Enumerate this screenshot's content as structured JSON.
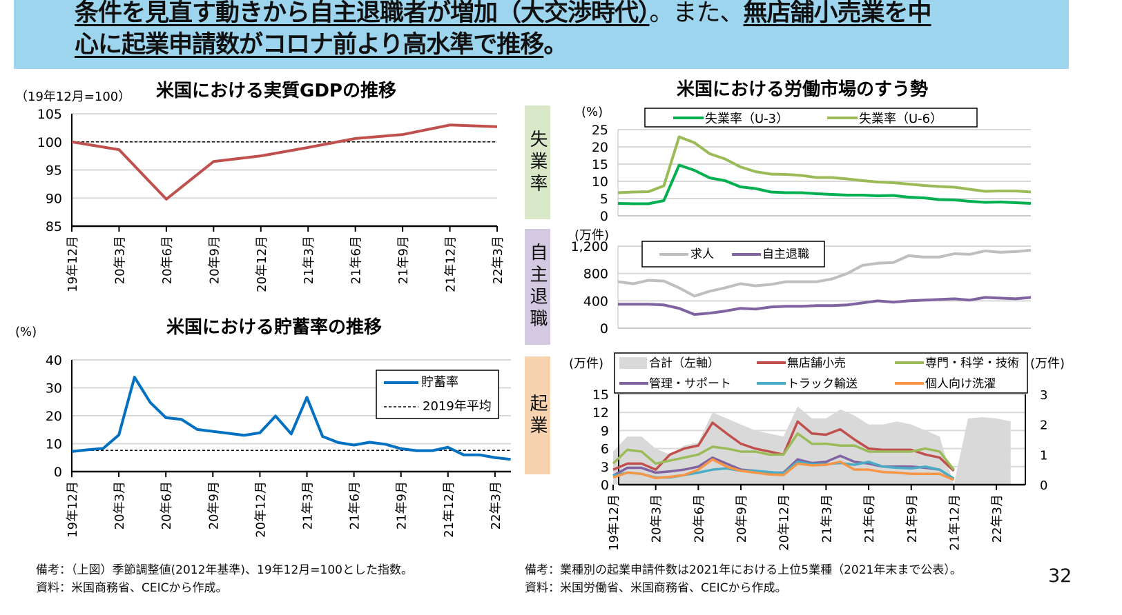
{
  "header": {
    "line1_a": "条件を見直す動きから自主退職者が増加（大交渉時代）",
    "line1_b": "。また、",
    "line1_c": "無店舗小売業を中",
    "line2_a": "心に起業申請数がコロナ前より高水準で推移",
    "line2_b": "。"
  },
  "tabs": {
    "unemployment": "失業率",
    "quits": "自主退職",
    "startups": "起業"
  },
  "notes": {
    "left1": "備考：（上図）季節調整値(2012年基準)、19年12月=100とした指数。",
    "left2": "資料：米国商務省、CEICから作成。",
    "right1": "備考：業種別の起業申請件数は2021年における上位5業種（2021年末まで公表）。",
    "right2": "資料：米国労働省、米国商務省、CEICから作成。"
  },
  "page_number": "32",
  "labor_title": "米国における労働市場のすう勢",
  "chart_data": [
    {
      "id": "gdp",
      "type": "line",
      "title": "米国における実質GDPの推移",
      "unit": "（19年12月=100）",
      "ylim": [
        85,
        105
      ],
      "yticks": [
        "105",
        "100",
        "95",
        "90",
        "85"
      ],
      "xticks": [
        "19年12月",
        "20年3月",
        "20年6月",
        "20年9月",
        "20年12月",
        "21年3月",
        "21年6月",
        "21年9月",
        "21年12月",
        "22年3月"
      ],
      "series": [
        {
          "values": [
            100,
            98.6,
            89.8,
            96.5,
            97.5,
            99.0,
            100.6,
            101.3,
            103.0,
            102.7
          ],
          "color": "#c0504d"
        }
      ],
      "reference": {
        "value": 100,
        "style": "dashed"
      }
    },
    {
      "id": "savings",
      "type": "line",
      "title": "米国における貯蓄率の推移",
      "unit": "(%)",
      "ylim": [
        0,
        40
      ],
      "yticks": [
        "40",
        "30",
        "20",
        "10",
        "0"
      ],
      "xticks": [
        "19年12月",
        "20年3月",
        "20年6月",
        "20年9月",
        "20年12月",
        "21年3月",
        "21年6月",
        "21年9月",
        "21年12月",
        "22年3月"
      ],
      "legend": [
        "貯蓄率",
        "2019年平均"
      ],
      "legend_position": "top-right",
      "series": [
        {
          "name": "貯蓄率",
          "color": "#0070c0",
          "values": [
            7.2,
            7.8,
            8.3,
            13.1,
            33.8,
            24.8,
            19.3,
            18.7,
            15.1,
            14.4,
            13.7,
            13.0,
            13.9,
            19.9,
            13.5,
            26.6,
            12.6,
            10.4,
            9.5,
            10.5,
            9.8,
            8.2,
            7.5,
            7.5,
            8.7,
            6.0,
            6.0,
            5.0,
            4.4
          ]
        }
      ],
      "reference": {
        "name": "2019年平均",
        "value": 7.6,
        "style": "dashed"
      }
    },
    {
      "id": "unemployment",
      "type": "line",
      "unit": "(%)",
      "ylim": [
        0,
        25
      ],
      "yticks": [
        "25",
        "20",
        "15",
        "10",
        "5",
        "0"
      ],
      "legend": [
        "失業率（U-3）",
        "失業率（U-6）"
      ],
      "series": [
        {
          "name": "失業率（U-3）",
          "color": "#00b050",
          "values": [
            3.6,
            3.5,
            3.5,
            4.4,
            14.7,
            13.2,
            11.0,
            10.2,
            8.4,
            7.9,
            6.9,
            6.7,
            6.7,
            6.4,
            6.2,
            6.0,
            6.0,
            5.8,
            5.9,
            5.4,
            5.2,
            4.7,
            4.6,
            4.2,
            3.9,
            4.0,
            3.8,
            3.6
          ]
        },
        {
          "name": "失業率（U-6）",
          "color": "#9bbb59",
          "values": [
            6.7,
            6.9,
            7.0,
            8.7,
            22.9,
            21.2,
            18.0,
            16.5,
            14.2,
            12.8,
            12.1,
            12.0,
            11.7,
            11.1,
            11.1,
            10.7,
            10.2,
            9.8,
            9.6,
            9.2,
            8.8,
            8.5,
            8.3,
            7.7,
            7.1,
            7.2,
            7.2,
            6.9
          ]
        }
      ]
    },
    {
      "id": "quits",
      "type": "line",
      "unit": "(万件)",
      "ylim": [
        0,
        1200
      ],
      "yticks": [
        "1,200",
        "800",
        "400",
        "0"
      ],
      "legend": [
        "求人",
        "自主退職"
      ],
      "series": [
        {
          "name": "求人",
          "color": "#bfbfbf",
          "values": [
            680,
            650,
            700,
            690,
            590,
            470,
            540,
            590,
            650,
            620,
            640,
            680,
            680,
            680,
            720,
            800,
            920,
            950,
            960,
            1060,
            1040,
            1040,
            1090,
            1080,
            1130,
            1110,
            1120,
            1140
          ]
        },
        {
          "name": "自主退職",
          "color": "#8064a2",
          "values": [
            350,
            350,
            350,
            340,
            290,
            200,
            220,
            250,
            290,
            280,
            310,
            320,
            320,
            330,
            330,
            340,
            370,
            400,
            380,
            400,
            410,
            420,
            430,
            410,
            450,
            440,
            430,
            450
          ]
        }
      ]
    },
    {
      "id": "startups",
      "type": "area+line",
      "unit_left": "(万件)",
      "unit_right": "(万件)",
      "ylim_left": [
        0,
        15
      ],
      "yticks_left": [
        "15",
        "12",
        "9",
        "6",
        "3",
        "0"
      ],
      "ylim_right": [
        0,
        3
      ],
      "yticks_right": [
        "3",
        "2",
        "1",
        "0"
      ],
      "xticks": [
        "19年12月",
        "20年3月",
        "20年6月",
        "20年9月",
        "20年12月",
        "21年3月",
        "21年6月",
        "21年9月",
        "21年12月",
        "22年3月"
      ],
      "legend": [
        "合計（左軸）",
        "無店舗小売",
        "専門・科学・技術",
        "管理・サポート",
        "トラック輸送",
        "個人向け洗濯"
      ],
      "total": {
        "name": "合計（左軸）",
        "color": "#d9d9d9",
        "values": [
          5.5,
          8,
          8,
          6,
          5,
          6.5,
          7,
          12,
          11,
          10,
          9,
          8.5,
          8,
          13,
          11,
          11,
          12.5,
          11.5,
          10,
          10,
          10.5,
          10,
          9,
          8,
          0,
          11,
          11.2,
          11,
          10.5
        ]
      },
      "series": [
        {
          "name": "無店舗小売",
          "color": "#c0504d",
          "values": [
            0.5,
            0.7,
            0.7,
            0.5,
            1.0,
            1.2,
            1.3,
            2.06,
            1.7,
            1.36,
            1.2,
            1.1,
            1.0,
            2.1,
            1.7,
            1.66,
            1.84,
            1.5,
            1.2,
            1.16,
            1.16,
            1.16,
            1.0,
            0.9,
            0.46
          ]
        },
        {
          "name": "専門・科学・技術",
          "color": "#9bbb59",
          "values": [
            0.7,
            1.16,
            1.1,
            0.7,
            0.8,
            0.9,
            1.0,
            1.26,
            1.2,
            1.1,
            1.1,
            1.0,
            1.0,
            1.7,
            1.36,
            1.36,
            1.3,
            1.3,
            1.1,
            1.1,
            1.1,
            1.1,
            1.2,
            1.1,
            0.5
          ]
        },
        {
          "name": "管理・サポート",
          "color": "#8064a2",
          "values": [
            0.3,
            0.56,
            0.56,
            0.4,
            0.44,
            0.5,
            0.6,
            0.9,
            0.7,
            0.5,
            0.46,
            0.4,
            0.4,
            0.84,
            0.72,
            0.76,
            0.96,
            0.76,
            0.7,
            0.6,
            0.6,
            0.6,
            0.56,
            0.5,
            0.2
          ]
        },
        {
          "name": "トラック輸送",
          "color": "#4bacc6",
          "values": [
            0.3,
            0.4,
            0.36,
            0.24,
            0.24,
            0.32,
            0.4,
            0.5,
            0.54,
            0.46,
            0.46,
            0.42,
            0.38,
            0.76,
            0.68,
            0.68,
            0.72,
            0.66,
            0.76,
            0.6,
            0.56,
            0.54,
            0.6,
            0.5,
            0.2
          ]
        },
        {
          "name": "個人向け洗濯",
          "color": "#f79646",
          "values": [
            0.24,
            0.4,
            0.36,
            0.22,
            0.26,
            0.32,
            0.5,
            0.84,
            0.6,
            0.46,
            0.4,
            0.34,
            0.32,
            0.7,
            0.64,
            0.66,
            0.76,
            0.5,
            0.5,
            0.42,
            0.4,
            0.36,
            0.36,
            0.36,
            0.16
          ]
        }
      ]
    }
  ]
}
